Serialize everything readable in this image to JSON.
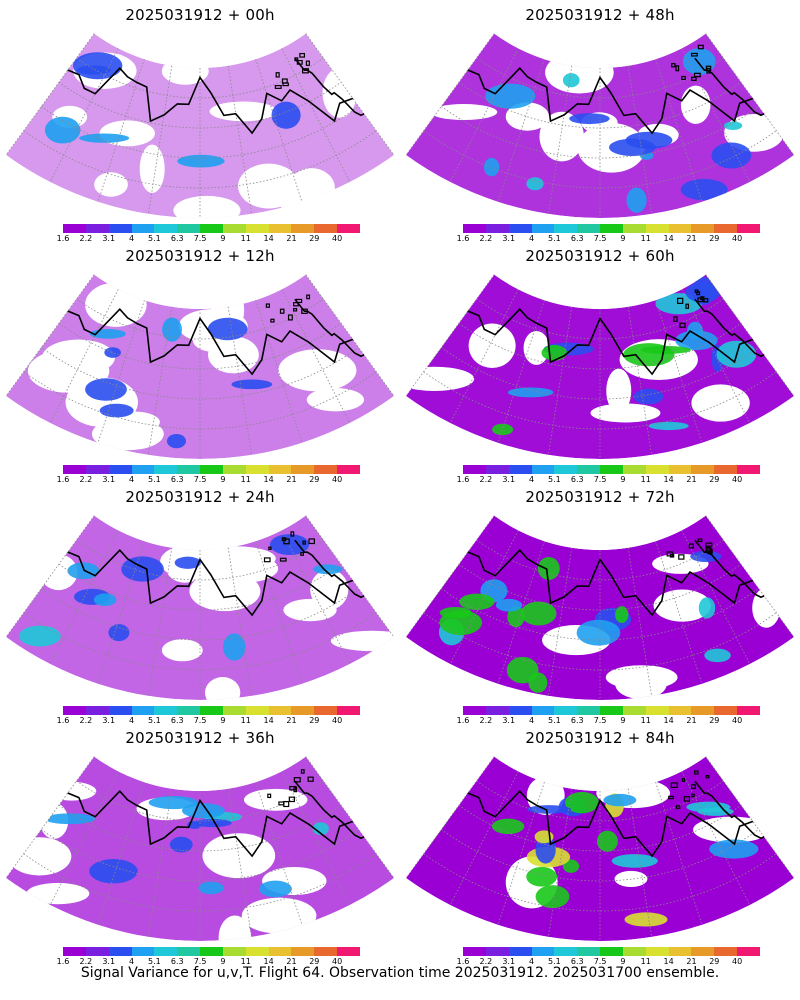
{
  "panels": [
    {
      "title": "2025031912 + 00h",
      "spread": 0.15
    },
    {
      "title": "2025031912 + 48h",
      "spread": 0.55
    },
    {
      "title": "2025031912 + 12h",
      "spread": 0.25
    },
    {
      "title": "2025031912 + 60h",
      "spread": 0.7
    },
    {
      "title": "2025031912 + 24h",
      "spread": 0.35
    },
    {
      "title": "2025031912 + 72h",
      "spread": 0.8
    },
    {
      "title": "2025031912 + 36h",
      "spread": 0.45
    },
    {
      "title": "2025031912 + 84h",
      "spread": 0.9
    }
  ],
  "colorbar": {
    "labels": [
      "1.6",
      "2.2",
      "3.1",
      "4",
      "5.1",
      "6.3",
      "7.5",
      "9",
      "11",
      "14",
      "21",
      "29",
      "40"
    ],
    "colors": [
      "#9a00d4",
      "#7a1fe0",
      "#2a4ef0",
      "#1fa0f0",
      "#1fc8d8",
      "#1fc8a0",
      "#18c818",
      "#a8dc30",
      "#d8e030",
      "#e8c030",
      "#e89a28",
      "#e86830",
      "#f01870"
    ]
  },
  "footer": "Signal Variance for u,v,T. Flight 64. Observation time 2025031912. 2025031700 ensemble."
}
